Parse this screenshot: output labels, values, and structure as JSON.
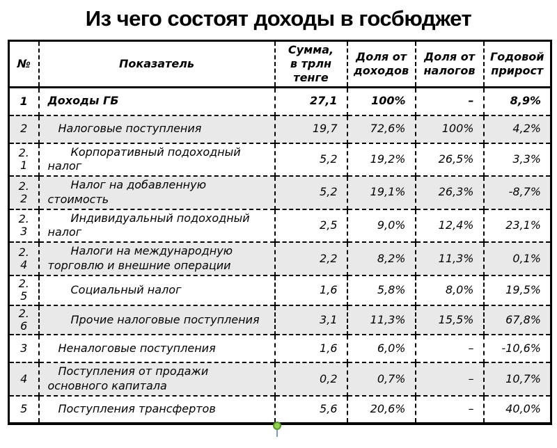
{
  "title": "Из чего состоят доходы в госбюджет",
  "colors": {
    "stripe": "#e9e9e9",
    "handle_green": "#92d050",
    "border": "#000000"
  },
  "chart_data": {
    "type": "table",
    "title": "Из чего состоят доходы в госбюджет",
    "columns": [
      "№",
      "Показатель",
      "Сумма,\nв трлн\nтенге",
      "Доля от\nдоходов",
      "Доля от\nналогов",
      "Годовой\nприрост"
    ],
    "rows": [
      {
        "num": "1",
        "name": "Доходы ГБ",
        "sum": "27,1",
        "share_income": "100%",
        "share_tax": "–",
        "growth": "8,9%",
        "level": 0,
        "bold": true
      },
      {
        "num": "2",
        "name": "Налоговые поступления",
        "sum": "19,7",
        "share_income": "72,6%",
        "share_tax": "100%",
        "growth": "4,2%",
        "level": 1,
        "bold": false
      },
      {
        "num": "2.\n1",
        "name": "Корпоративный подоходный налог",
        "sum": "5,2",
        "share_income": "19,2%",
        "share_tax": "26,5%",
        "growth": "3,3%",
        "level": 2,
        "bold": false
      },
      {
        "num": "2.\n2",
        "name": "Налог на добавленную стоимость",
        "sum": "5,2",
        "share_income": "19,1%",
        "share_tax": "26,3%",
        "growth": "-8,7%",
        "level": 2,
        "bold": false
      },
      {
        "num": "2.\n3",
        "name": "Индивидуальный подоходный налог",
        "sum": "2,5",
        "share_income": "9,0%",
        "share_tax": "12,4%",
        "growth": "23,1%",
        "level": 2,
        "bold": false
      },
      {
        "num": "2.\n4",
        "name": "Налоги на международную торговлю и внешние операции",
        "sum": "2,2",
        "share_income": "8,2%",
        "share_tax": "11,3%",
        "growth": "0,1%",
        "level": 2,
        "bold": false
      },
      {
        "num": "2.\n5",
        "name": "Социальный налог",
        "sum": "1,6",
        "share_income": "5,8%",
        "share_tax": "8,0%",
        "growth": "19,5%",
        "level": 2,
        "bold": false
      },
      {
        "num": "2.\n6",
        "name": "Прочие налоговые поступления",
        "sum": "3,1",
        "share_income": "11,3%",
        "share_tax": "15,5%",
        "growth": "67,8%",
        "level": 2,
        "bold": false
      },
      {
        "num": "3",
        "name": "Неналоговые поступления",
        "sum": "1,6",
        "share_income": "6,0%",
        "share_tax": "–",
        "growth": "-10,6%",
        "level": 1,
        "bold": false
      },
      {
        "num": "4",
        "name": "Поступления от продажи основного капитала",
        "sum": "0,2",
        "share_income": "0,7%",
        "share_tax": "–",
        "growth": "10,7%",
        "level": 1,
        "bold": false
      },
      {
        "num": "5",
        "name": "Поступления трансфертов",
        "sum": "5,6",
        "share_income": "20,6%",
        "share_tax": "–",
        "growth": "40,0%",
        "level": 1,
        "bold": false
      }
    ]
  }
}
